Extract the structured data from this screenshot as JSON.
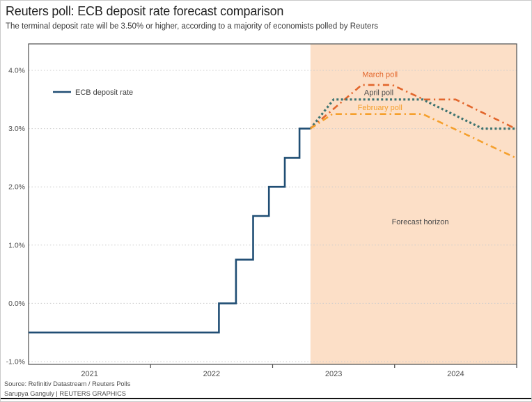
{
  "header": {
    "title": "Reuters poll: ECB deposit rate forecast comparison",
    "subtitle": "The terminal deposit rate will be 3.50% or higher, according to a majority of economists polled by Reuters"
  },
  "footer": {
    "source": "Source: Refinitiv Datastream / Reuters Polls",
    "credit": "Sarupya Ganguly | REUTERS GRAPHICS"
  },
  "colors": {
    "actual_line": "#204e74",
    "march_poll": "#e2662c",
    "april_poll": "#3d7370",
    "february_poll": "#f5a02d",
    "forecast_fill": "#fcdfc7",
    "axis_text": "#4d4d4d",
    "gridline": "#cccccc",
    "plot_border": "#4d4d4d"
  },
  "chart_data": {
    "type": "line",
    "title": "Reuters poll: ECB deposit rate forecast comparison",
    "xlabel": "",
    "ylabel": "",
    "x_axis": {
      "range": [
        2021,
        2025
      ],
      "tick_boundaries": [
        2022,
        2023,
        2024,
        2025
      ],
      "year_labels": [
        {
          "pos": 2021.5,
          "label": "2021"
        },
        {
          "pos": 2022.5,
          "label": "2022"
        },
        {
          "pos": 2023.5,
          "label": "2023"
        },
        {
          "pos": 2024.5,
          "label": "2024"
        }
      ]
    },
    "y_axis": {
      "range": [
        -1.25,
        4.45
      ],
      "grid": "dotted",
      "ticks": [
        {
          "value": 4.0,
          "label": "4.0%"
        },
        {
          "value": 3.0,
          "label": "3.0%"
        },
        {
          "value": 2.0,
          "label": "2.0%"
        },
        {
          "value": 1.0,
          "label": "1.0%"
        },
        {
          "value": 0.0,
          "label": "0.0%"
        },
        {
          "value": -1.0,
          "label": "-1.0%"
        }
      ]
    },
    "forecast_region": {
      "x_start": 2023.31,
      "x_end": 2025.0,
      "fill": "#fcdfc7",
      "label": "Forecast horizon",
      "label_pos": [
        2024.21,
        1.4
      ],
      "label_color": "#4d4d4d"
    },
    "legend": {
      "label": "ECB deposit rate",
      "color": "#204e74",
      "position": "top-left"
    },
    "series": [
      {
        "name": "ECB deposit rate",
        "color": "#204e74",
        "dash": "solid",
        "width": 2.6,
        "points": [
          [
            2021.0,
            -0.5
          ],
          [
            2022.56,
            -0.5
          ],
          [
            2022.56,
            0.0
          ],
          [
            2022.7,
            0.0
          ],
          [
            2022.7,
            0.75
          ],
          [
            2022.84,
            0.75
          ],
          [
            2022.84,
            1.5
          ],
          [
            2022.97,
            1.5
          ],
          [
            2022.97,
            2.0
          ],
          [
            2023.1,
            2.0
          ],
          [
            2023.1,
            2.5
          ],
          [
            2023.22,
            2.5
          ],
          [
            2023.22,
            3.0
          ],
          [
            2023.31,
            3.0
          ]
        ]
      },
      {
        "name": "March poll",
        "color": "#e2662c",
        "dash": "dashdot",
        "width": 2.6,
        "points": [
          [
            2023.31,
            3.0
          ],
          [
            2023.73,
            3.75
          ],
          [
            2023.98,
            3.75
          ],
          [
            2024.24,
            3.5
          ],
          [
            2024.5,
            3.5
          ],
          [
            2024.99,
            3.0
          ]
        ],
        "label": {
          "text": "March poll",
          "pos": [
            2023.88,
            3.93
          ],
          "color": "#e2662c"
        }
      },
      {
        "name": "April poll",
        "color": "#3d7370",
        "dash": "dotted",
        "width": 3.2,
        "points": [
          [
            2023.31,
            3.0
          ],
          [
            2023.5,
            3.5
          ],
          [
            2024.23,
            3.5
          ],
          [
            2024.72,
            3.0
          ],
          [
            2024.99,
            3.0
          ]
        ],
        "label": {
          "text": "April poll",
          "pos": [
            2023.87,
            3.62
          ],
          "color": "#4a4a4a"
        }
      },
      {
        "name": "February poll",
        "color": "#f5a02d",
        "dash": "dashdot",
        "width": 2.6,
        "points": [
          [
            2023.31,
            3.0
          ],
          [
            2023.49,
            3.25
          ],
          [
            2024.23,
            3.25
          ],
          [
            2024.99,
            2.5
          ]
        ],
        "label": {
          "text": "February poll",
          "pos": [
            2023.88,
            3.36
          ],
          "color": "#f5a02d"
        }
      }
    ]
  }
}
